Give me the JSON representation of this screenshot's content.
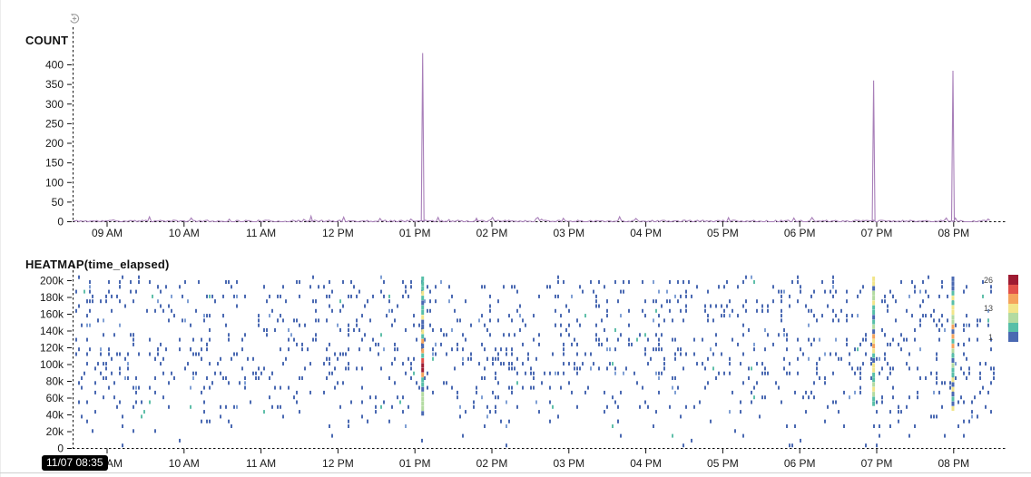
{
  "ui": {
    "timestamp_badge": "11/07 08:35",
    "icons": {
      "reset_zoom": "circular-arrow-plus-reset-zoom-icon"
    },
    "colors": {
      "line": "#a87fb9",
      "axis": "#111111",
      "heat_cell": "#4a69b2",
      "badge_bg": "#000000",
      "badge_text": "#ffffff"
    }
  },
  "chart_data": [
    {
      "type": "line",
      "title": "COUNT",
      "line_color": "#a87fb9",
      "seed": 11,
      "x_axis": {
        "start_hour": 8.56,
        "end_hour": 20.49,
        "ticks": [
          {
            "h": 9,
            "label": "09 AM"
          },
          {
            "h": 10,
            "label": "10 AM"
          },
          {
            "h": 11,
            "label": "11 AM"
          },
          {
            "h": 12,
            "label": "12 PM"
          },
          {
            "h": 13,
            "label": "01 PM"
          },
          {
            "h": 14,
            "label": "02 PM"
          },
          {
            "h": 15,
            "label": "03 PM"
          },
          {
            "h": 16,
            "label": "04 PM"
          },
          {
            "h": 17,
            "label": "05 PM"
          },
          {
            "h": 18,
            "label": "06 PM"
          },
          {
            "h": 19,
            "label": "07 PM"
          },
          {
            "h": 20,
            "label": "08 PM"
          }
        ]
      },
      "y_axis": {
        "ticks": [
          0,
          50,
          100,
          150,
          200,
          250,
          300,
          350,
          400
        ],
        "max": 430
      },
      "baseline": {
        "typical": 2,
        "max_noise": 14
      },
      "minor_bumps": [
        {
          "hour": 11.65,
          "value": 14
        },
        {
          "hour": 13.8,
          "value": 9
        }
      ],
      "spikes": [
        {
          "hour": 13.1,
          "value": 430
        },
        {
          "hour": 18.96,
          "value": 360
        },
        {
          "hour": 19.99,
          "value": 385
        }
      ]
    },
    {
      "type": "heatmap",
      "title": "HEATMAP(time_elapsed)",
      "seed": 23,
      "n_points": 1300,
      "cell_color": "#4a69b2",
      "cell_color_variants": [
        {
          "color": "#7f9fd4",
          "p": 0.07
        },
        {
          "color": "#5fbfa9",
          "p": 0.03
        }
      ],
      "x_axis": {
        "start_hour": 8.56,
        "end_hour": 20.49,
        "ticks": [
          {
            "h": 9,
            "label": "09 AM"
          },
          {
            "h": 10,
            "label": "10 AM"
          },
          {
            "h": 11,
            "label": "11 AM"
          },
          {
            "h": 12,
            "label": "12 PM"
          },
          {
            "h": 13,
            "label": "01 PM"
          },
          {
            "h": 14,
            "label": "02 PM"
          },
          {
            "h": 15,
            "label": "03 PM"
          },
          {
            "h": 16,
            "label": "04 PM"
          },
          {
            "h": 17,
            "label": "05 PM"
          },
          {
            "h": 18,
            "label": "06 PM"
          },
          {
            "h": 19,
            "label": "07 PM"
          },
          {
            "h": 20,
            "label": "08 PM"
          }
        ]
      },
      "y_axis": {
        "unit": "time_elapsed",
        "ticks": [
          {
            "v": 0,
            "label": "0"
          },
          {
            "v": 20,
            "label": "20k"
          },
          {
            "v": 40,
            "label": "40k"
          },
          {
            "v": 60,
            "label": "60k"
          },
          {
            "v": 80,
            "label": "80k"
          },
          {
            "v": 100,
            "label": "100k"
          },
          {
            "v": 120,
            "label": "120k"
          },
          {
            "v": 140,
            "label": "140k"
          },
          {
            "v": 160,
            "label": "160k"
          },
          {
            "v": 180,
            "label": "180k"
          },
          {
            "v": 200,
            "label": "200k"
          }
        ]
      },
      "density_bands": [
        {
          "range": [
            160,
            205
          ],
          "w": 0.26
        },
        {
          "range": [
            135,
            160
          ],
          "w": 0.13
        },
        {
          "range": [
            85,
            135
          ],
          "w": 0.38
        },
        {
          "range": [
            55,
            85
          ],
          "w": 0.13
        },
        {
          "range": [
            28,
            55
          ],
          "w": 0.08
        },
        {
          "range": [
            5,
            28
          ],
          "w": 0.02
        }
      ],
      "palette": {
        "darkred": "#9e1b32",
        "red": "#e2514a",
        "orange": "#f5a35c",
        "yellow": "#f2e58a",
        "green": "#b3dba1",
        "teal": "#57bfa8",
        "blue": "#4a69b2"
      },
      "stripes": [
        {
          "hour": 13.1,
          "k_min": 40,
          "k_max": 205,
          "hot": [
            85,
            135
          ]
        },
        {
          "hour": 18.96,
          "k_min": 55,
          "k_max": 205,
          "hot": [
            120,
            150
          ]
        },
        {
          "hour": 19.99,
          "k_min": 45,
          "k_max": 205,
          "hot": [
            95,
            150
          ]
        }
      ],
      "legend": {
        "colors": [
          "#9e1b32",
          "#e2514a",
          "#f5a35c",
          "#f2e58a",
          "#b3dba1",
          "#57bfa8",
          "#4a69b2"
        ],
        "labels": [
          {
            "index": 0,
            "text": "26"
          },
          {
            "index": 3,
            "text": "13"
          },
          {
            "index": 6,
            "text": "1"
          }
        ]
      }
    }
  ]
}
